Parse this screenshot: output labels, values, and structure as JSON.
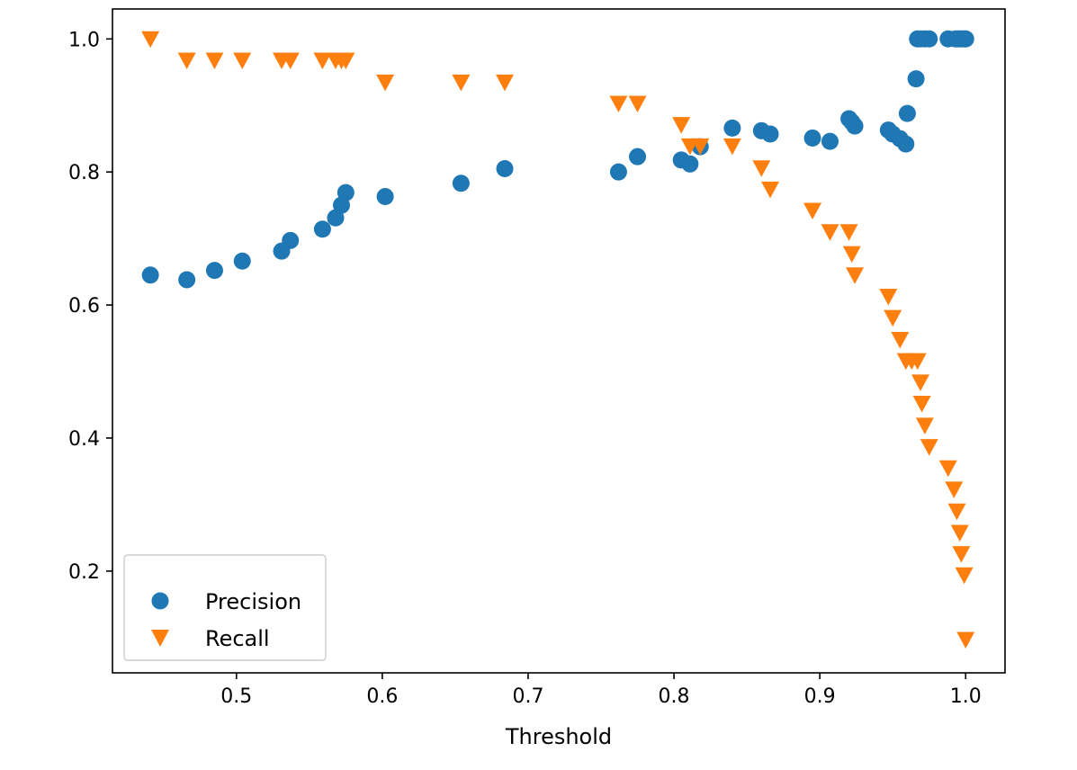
{
  "chart_data": {
    "type": "scatter",
    "title": "",
    "xlabel": "Threshold",
    "ylabel": "",
    "xlim": [
      0.415,
      1.027
    ],
    "ylim": [
      0.047,
      1.045
    ],
    "xticks": [
      0.5,
      0.6,
      0.7,
      0.8,
      0.9,
      1.0
    ],
    "xtick_labels": [
      "0.5",
      "0.6",
      "0.7",
      "0.8",
      "0.9",
      "1.0"
    ],
    "yticks": [
      0.2,
      0.4,
      0.6,
      0.8,
      1.0
    ],
    "ytick_labels": [
      "0.2",
      "0.4",
      "0.6",
      "0.8",
      "1.0"
    ],
    "grid": false,
    "legend": {
      "placement": "lower-left",
      "entries": [
        "Precision",
        "Recall"
      ]
    },
    "series": [
      {
        "name": "Precision",
        "marker": "circle",
        "color": "#1f77b4",
        "points": [
          [
            0.441,
            0.645
          ],
          [
            0.466,
            0.638
          ],
          [
            0.485,
            0.652
          ],
          [
            0.504,
            0.666
          ],
          [
            0.531,
            0.681
          ],
          [
            0.537,
            0.697
          ],
          [
            0.559,
            0.714
          ],
          [
            0.568,
            0.731
          ],
          [
            0.572,
            0.75
          ],
          [
            0.575,
            0.769
          ],
          [
            0.602,
            0.763
          ],
          [
            0.654,
            0.783
          ],
          [
            0.684,
            0.805
          ],
          [
            0.762,
            0.8
          ],
          [
            0.775,
            0.823
          ],
          [
            0.805,
            0.818
          ],
          [
            0.811,
            0.812
          ],
          [
            0.818,
            0.838
          ],
          [
            0.84,
            0.866
          ],
          [
            0.86,
            0.862
          ],
          [
            0.866,
            0.857
          ],
          [
            0.895,
            0.851
          ],
          [
            0.907,
            0.846
          ],
          [
            0.92,
            0.88
          ],
          [
            0.922,
            0.875
          ],
          [
            0.924,
            0.869
          ],
          [
            0.947,
            0.863
          ],
          [
            0.95,
            0.857
          ],
          [
            0.955,
            0.85
          ],
          [
            0.959,
            0.842
          ],
          [
            0.96,
            0.888
          ],
          [
            0.966,
            0.94
          ],
          [
            0.967,
            1.0
          ],
          [
            0.969,
            1.0
          ],
          [
            0.972,
            1.0
          ],
          [
            0.975,
            1.0
          ],
          [
            0.988,
            1.0
          ],
          [
            0.993,
            1.0
          ],
          [
            0.995,
            1.0
          ],
          [
            0.997,
            1.0
          ],
          [
            0.999,
            1.0
          ],
          [
            1.0,
            1.0
          ]
        ]
      },
      {
        "name": "Recall",
        "marker": "triangle-down",
        "color": "#ff7f0e",
        "points": [
          [
            0.441,
            1.0
          ],
          [
            0.466,
            0.968
          ],
          [
            0.485,
            0.968
          ],
          [
            0.504,
            0.968
          ],
          [
            0.531,
            0.968
          ],
          [
            0.537,
            0.968
          ],
          [
            0.559,
            0.968
          ],
          [
            0.568,
            0.968
          ],
          [
            0.572,
            0.968
          ],
          [
            0.575,
            0.968
          ],
          [
            0.602,
            0.935
          ],
          [
            0.654,
            0.935
          ],
          [
            0.684,
            0.935
          ],
          [
            0.762,
            0.903
          ],
          [
            0.775,
            0.903
          ],
          [
            0.805,
            0.871
          ],
          [
            0.811,
            0.839
          ],
          [
            0.818,
            0.839
          ],
          [
            0.84,
            0.839
          ],
          [
            0.86,
            0.806
          ],
          [
            0.866,
            0.774
          ],
          [
            0.895,
            0.742
          ],
          [
            0.907,
            0.71
          ],
          [
            0.92,
            0.71
          ],
          [
            0.922,
            0.677
          ],
          [
            0.924,
            0.645
          ],
          [
            0.947,
            0.613
          ],
          [
            0.95,
            0.581
          ],
          [
            0.955,
            0.548
          ],
          [
            0.959,
            0.516
          ],
          [
            0.963,
            0.516
          ],
          [
            0.967,
            0.516
          ],
          [
            0.969,
            0.484
          ],
          [
            0.97,
            0.452
          ],
          [
            0.972,
            0.419
          ],
          [
            0.975,
            0.387
          ],
          [
            0.988,
            0.355
          ],
          [
            0.992,
            0.323
          ],
          [
            0.994,
            0.29
          ],
          [
            0.996,
            0.258
          ],
          [
            0.997,
            0.226
          ],
          [
            0.999,
            0.194
          ],
          [
            1.0,
            0.097
          ]
        ]
      }
    ]
  }
}
